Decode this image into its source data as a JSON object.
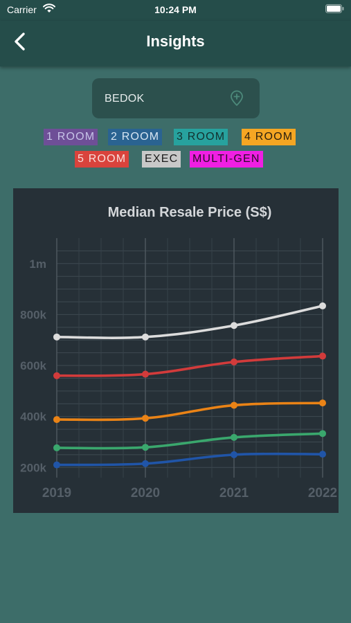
{
  "status_bar": {
    "carrier": "Carrier",
    "time": "10:24 PM"
  },
  "nav": {
    "title": "Insights",
    "back_icon": "chevron-left-icon"
  },
  "town_selector": {
    "value": "BEDOK",
    "icon": "map-pin-plus-icon"
  },
  "flat_types": [
    {
      "label": "1 ROOM",
      "bg": "#6e4f97",
      "fg": "#c7c4e8"
    },
    {
      "label": "2 ROOM",
      "bg": "#2a6391",
      "fg": "#d7e6f3"
    },
    {
      "label": "3 ROOM",
      "bg": "#27a29e",
      "fg": "#13302e"
    },
    {
      "label": "4 ROOM",
      "bg": "#f5a623",
      "fg": "#2a2010"
    },
    {
      "label": "5 ROOM",
      "bg": "#d9433c",
      "fg": "#f8dfdc"
    },
    {
      "label": "EXEC",
      "bg": "#c8c8c8",
      "fg": "#1a1a1a"
    },
    {
      "label": "MULTI-GEN",
      "bg": "#f01fe3",
      "fg": "#2a0a28"
    }
  ],
  "chart_data": {
    "type": "line",
    "title": "Median Resale Price (S$)",
    "x": [
      "2019",
      "2020",
      "2021",
      "2022"
    ],
    "y_ticks": [
      {
        "label": "200k",
        "value": 200000
      },
      {
        "label": "400k",
        "value": 400000
      },
      {
        "label": "600k",
        "value": 600000
      },
      {
        "label": "800k",
        "value": 800000
      },
      {
        "label": "1m",
        "value": 1000000
      }
    ],
    "ylim": [
      160000,
      1100000
    ],
    "grid": true,
    "legend": "none",
    "series": [
      {
        "color": "#2055a8",
        "values": [
          210000,
          215000,
          250000,
          252000
        ]
      },
      {
        "color": "#3aa76d",
        "values": [
          277000,
          279000,
          318000,
          333000
        ]
      },
      {
        "color": "#ea8316",
        "values": [
          388000,
          393000,
          444000,
          453000
        ]
      },
      {
        "color": "#d23b3b",
        "values": [
          560000,
          566000,
          614000,
          637000
        ]
      },
      {
        "color": "#dcdcdc",
        "values": [
          712000,
          712000,
          757000,
          834000
        ]
      }
    ]
  }
}
